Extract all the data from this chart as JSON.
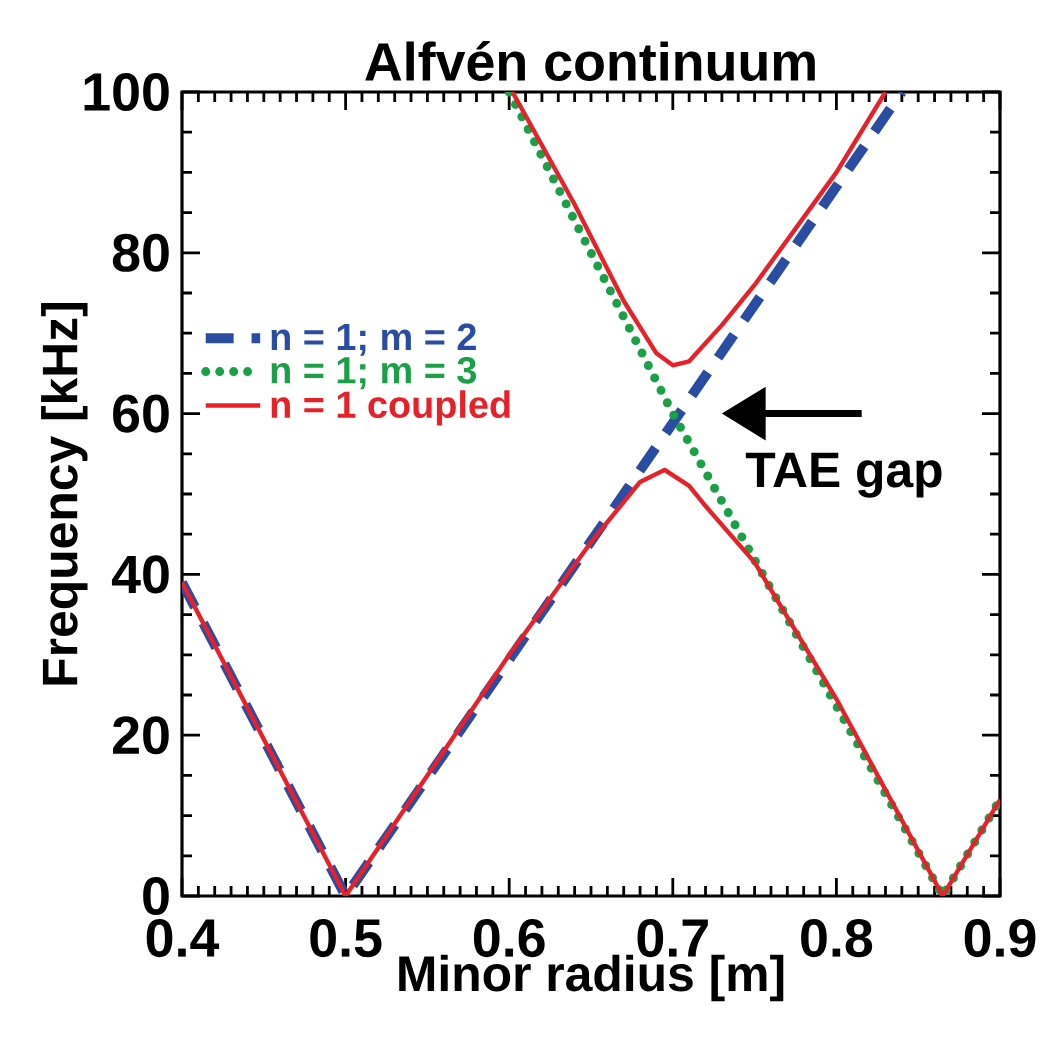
{
  "chart_data": {
    "type": "line",
    "title": "Alfvén continuum",
    "xlabel": "Minor radius [m]",
    "ylabel": "Frequency [kHz]",
    "xlim": [
      0.4,
      0.9
    ],
    "ylim": [
      0,
      100
    ],
    "xticks": [
      0.4,
      0.5,
      0.6,
      0.7,
      0.8,
      0.9
    ],
    "yticks": [
      0,
      20,
      40,
      60,
      80,
      100
    ],
    "grid": false,
    "legend": "left",
    "marker": "none",
    "annotations": [
      "TAE gap"
    ],
    "series": [
      {
        "name": "n = 1; m = 2",
        "color": "#2b4ca3",
        "line_style": "dashed",
        "x": [
          0.4,
          0.5,
          0.84
        ],
        "values": [
          39,
          0,
          100
        ]
      },
      {
        "name": "n = 1; m = 3",
        "color": "#1aa046",
        "line_style": "dotted",
        "x": [
          0.6,
          0.7,
          0.865,
          0.9
        ],
        "values": [
          100,
          60,
          0,
          12
        ]
      },
      {
        "name": "n = 1 coupled",
        "color": "#e8202a",
        "line_style": "solid",
        "x": [
          0.4,
          0.5,
          0.6,
          0.65,
          0.68,
          0.695,
          0.71,
          0.72,
          0.75,
          0.8,
          0.865,
          0.9
        ],
        "values": [
          39,
          0,
          30,
          44,
          51.5,
          53,
          51,
          48.5,
          41.5,
          24.5,
          0,
          12
        ]
      },
      {
        "color": "#e8202a",
        "line_style": "solid",
        "x": [
          0.602,
          0.64,
          0.67,
          0.69,
          0.7,
          0.71,
          0.73,
          0.75,
          0.8,
          0.83
        ],
        "values": [
          100,
          86,
          74,
          67.5,
          66,
          66.5,
          71,
          76,
          90,
          100
        ]
      }
    ]
  }
}
